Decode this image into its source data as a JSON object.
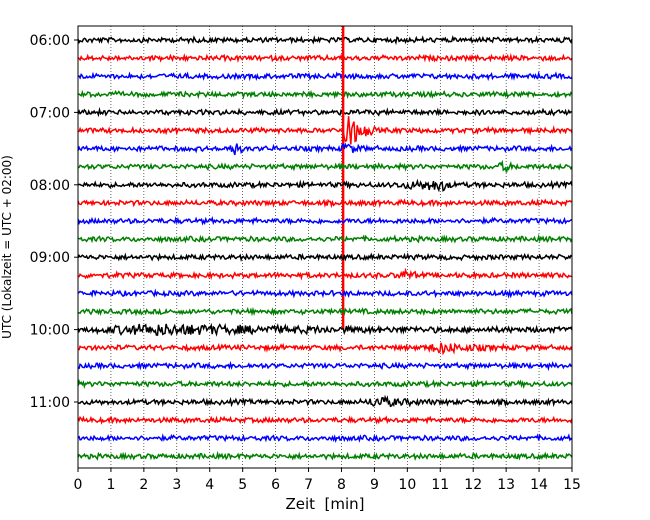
{
  "chart_data": {
    "type": "line",
    "title": "",
    "xlabel": "Zeit  [min]",
    "ylabel": "UTC (Lokalzeit = UTC + 02:00)",
    "xlim": [
      0,
      15
    ],
    "x_ticks": [
      "0",
      "1",
      "2",
      "3",
      "4",
      "5",
      "6",
      "7",
      "8",
      "9",
      "10",
      "11",
      "12",
      "13",
      "14",
      "15"
    ],
    "y_ticks": [
      "06:00",
      "07:00",
      "08:00",
      "09:00",
      "10:00",
      "11:00"
    ],
    "y_tick_trace_index": [
      0,
      4,
      8,
      12,
      16,
      20
    ],
    "grid": "vertical dotted",
    "trace_interval_min": 15,
    "color_cycle": [
      "#000000",
      "#ff0000",
      "#0000ff",
      "#008000"
    ],
    "traces": [
      {
        "start": "06:00"
      },
      {
        "start": "06:15"
      },
      {
        "start": "06:30"
      },
      {
        "start": "06:45"
      },
      {
        "start": "07:00"
      },
      {
        "start": "07:15"
      },
      {
        "start": "07:30"
      },
      {
        "start": "07:45"
      },
      {
        "start": "08:00"
      },
      {
        "start": "08:15"
      },
      {
        "start": "08:30"
      },
      {
        "start": "08:45"
      },
      {
        "start": "09:00"
      },
      {
        "start": "09:15"
      },
      {
        "start": "09:30"
      },
      {
        "start": "09:45"
      },
      {
        "start": "10:00"
      },
      {
        "start": "10:15"
      },
      {
        "start": "10:30"
      },
      {
        "start": "10:45"
      },
      {
        "start": "11:00"
      },
      {
        "start": "11:15"
      },
      {
        "start": "11:30"
      },
      {
        "start": "11:45"
      }
    ],
    "events": [
      {
        "trace_index": 5,
        "x_start": 8.05,
        "peak": 8.15,
        "x_end": 9.1,
        "amplitude": 1.6,
        "vertical_spike": true
      },
      {
        "trace_index": 6,
        "x_start": 4.5,
        "peak": 4.75,
        "x_end": 5.1,
        "amplitude": 0.45,
        "vertical_spike": false
      },
      {
        "trace_index": 6,
        "x_start": 8.0,
        "peak": 8.1,
        "x_end": 8.8,
        "amplitude": 0.4,
        "vertical_spike": false
      },
      {
        "trace_index": 8,
        "x_start": 9.3,
        "peak": 11.1,
        "x_end": 11.5,
        "amplitude": 0.3,
        "vertical_spike": false
      },
      {
        "trace_index": 7,
        "x_start": 12.7,
        "peak": 13.0,
        "x_end": 13.3,
        "amplitude": 0.3,
        "vertical_spike": false
      },
      {
        "trace_index": 16,
        "x_start": 0.2,
        "peak": 2.3,
        "x_end": 15,
        "amplitude": 0.3,
        "vertical_spike": false
      },
      {
        "trace_index": 17,
        "x_start": 10.5,
        "peak": 11.0,
        "x_end": 13.2,
        "amplitude": 0.3,
        "vertical_spike": false
      },
      {
        "trace_index": 20,
        "x_start": 8.7,
        "peak": 9.1,
        "x_end": 11.0,
        "amplitude": 0.3,
        "vertical_spike": false
      },
      {
        "trace_index": 13,
        "x_start": 9.6,
        "peak": 10.0,
        "x_end": 10.5,
        "amplitude": 0.25,
        "vertical_spike": false
      }
    ]
  }
}
